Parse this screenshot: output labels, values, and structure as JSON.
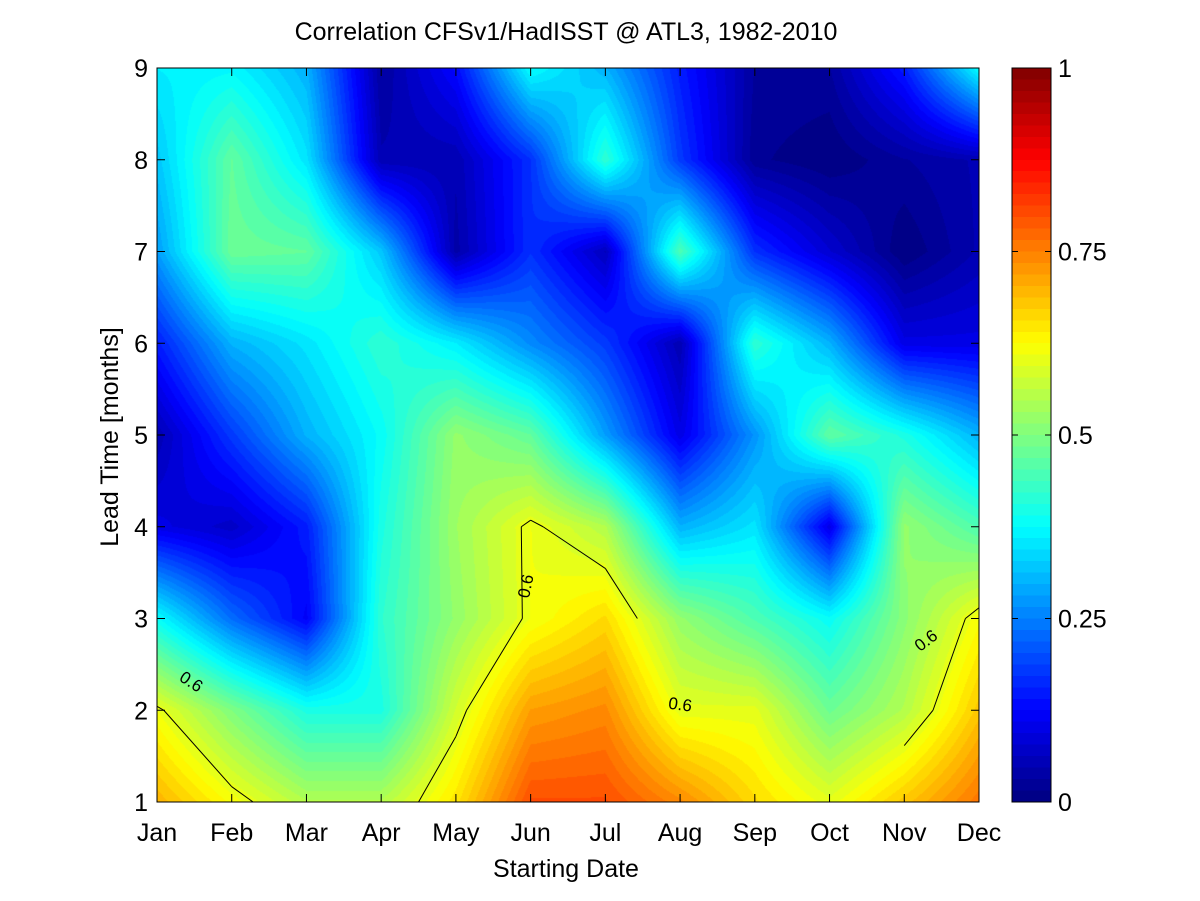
{
  "chart_data": {
    "type": "heatmap",
    "title": "Correlation CFSv1/HadISST @ ATL3, 1982-2010",
    "xlabel": "Starting Date",
    "ylabel": "Lead Time [months]",
    "x": [
      "Jan",
      "Feb",
      "Mar",
      "Apr",
      "May",
      "Jun",
      "Jul",
      "Aug",
      "Sep",
      "Oct",
      "Nov",
      "Dec"
    ],
    "y": [
      1,
      2,
      3,
      4,
      5,
      6,
      7,
      8,
      9
    ],
    "xlim": [
      "Jan",
      "Dec"
    ],
    "ylim": [
      1,
      9
    ],
    "colormap": "jet",
    "clim": [
      0,
      1
    ],
    "colorbar_ticks": [
      {
        "value": 0,
        "label": "0"
      },
      {
        "value": 0.25,
        "label": "0.25"
      },
      {
        "value": 0.5,
        "label": "0.5"
      },
      {
        "value": 0.75,
        "label": "0.75"
      },
      {
        "value": 1,
        "label": "1"
      }
    ],
    "contour_level": 0.6,
    "contour_label": "0.6",
    "rows_by_lead": [
      {
        "lead": 1,
        "values": [
          0.7,
          0.62,
          0.55,
          0.55,
          0.65,
          0.8,
          0.8,
          0.74,
          0.66,
          0.6,
          0.68,
          0.76
        ]
      },
      {
        "lead": 2,
        "values": [
          0.61,
          0.5,
          0.4,
          0.4,
          0.58,
          0.72,
          0.74,
          0.6,
          0.6,
          0.48,
          0.55,
          0.68
        ]
      },
      {
        "lead": 3,
        "values": [
          0.38,
          0.23,
          0.12,
          0.42,
          0.52,
          0.61,
          0.66,
          0.52,
          0.45,
          0.38,
          0.51,
          0.62
        ]
      },
      {
        "lead": 4,
        "values": [
          0.1,
          0.07,
          0.15,
          0.4,
          0.53,
          0.61,
          0.55,
          0.3,
          0.35,
          0.1,
          0.52,
          0.45
        ]
      },
      {
        "lead": 5,
        "values": [
          0.05,
          0.18,
          0.3,
          0.38,
          0.52,
          0.47,
          0.28,
          0.1,
          0.27,
          0.47,
          0.4,
          0.3
        ]
      },
      {
        "lead": 6,
        "values": [
          0.15,
          0.3,
          0.35,
          0.42,
          0.36,
          0.26,
          0.18,
          0.05,
          0.42,
          0.3,
          0.1,
          0.1
        ]
      },
      {
        "lead": 7,
        "values": [
          0.28,
          0.48,
          0.47,
          0.32,
          0.04,
          0.17,
          0.06,
          0.45,
          0.17,
          0.08,
          0.0,
          0.05
        ]
      },
      {
        "lead": 8,
        "values": [
          0.32,
          0.47,
          0.35,
          0.05,
          0.05,
          0.17,
          0.42,
          0.18,
          0.02,
          0.0,
          0.03,
          0.05
        ]
      },
      {
        "lead": 9,
        "values": [
          0.36,
          0.37,
          0.3,
          0.03,
          0.13,
          0.38,
          0.3,
          0.15,
          0.03,
          0.03,
          0.15,
          0.38
        ]
      }
    ]
  }
}
